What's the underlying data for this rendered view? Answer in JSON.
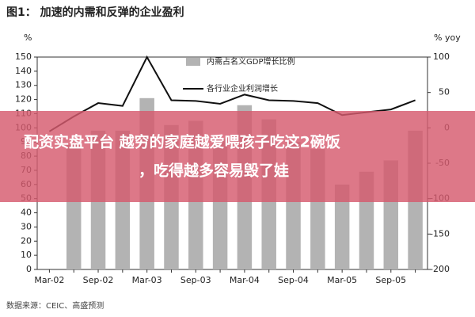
{
  "chart_data": {
    "type": "combo",
    "title": "图1： 加速的内需和反弹的企业盈利",
    "ylabel": "%",
    "y2label": "% yoy",
    "categories": [
      "Mar-02",
      null,
      "Sep-02",
      null,
      "Mar-03",
      null,
      "Sep-03",
      null,
      "Mar-04",
      null,
      "Sep-04",
      null,
      "Mar-05",
      null,
      "Sep-05",
      null
    ],
    "series": [
      {
        "name": "内需占名义GDP增长比例",
        "type": "bar",
        "color": "#b3b3b3",
        "axis": "y",
        "values": [
          null,
          88,
          98,
          98,
          121,
          102,
          105,
          92,
          116,
          106,
          90,
          85,
          60,
          69,
          77,
          98
        ]
      },
      {
        "name": "各行业企业利润增长",
        "type": "line",
        "color": "#111111",
        "axis": "y2",
        "values": [
          -5,
          16,
          35,
          31,
          100,
          39,
          38,
          34,
          47,
          39,
          38,
          35,
          18,
          22,
          26,
          39
        ]
      }
    ],
    "ylim": [
      0,
      150
    ],
    "yticks": [
      0,
      10,
      20,
      30,
      40,
      50,
      60,
      70,
      80,
      90,
      100,
      110,
      120,
      130,
      140,
      150
    ],
    "y2lim": [
      -200,
      100
    ],
    "y2ticks": [
      -200,
      -150,
      -100,
      -50,
      0,
      50,
      100
    ],
    "legend": "top",
    "source": "数据来源：CEIC、高盛预测",
    "banner": [
      "配资实盘平台 越穷的家庭越爱喂孩子吃这2碗饭",
      "，吃得越多容易毁了娃"
    ]
  }
}
